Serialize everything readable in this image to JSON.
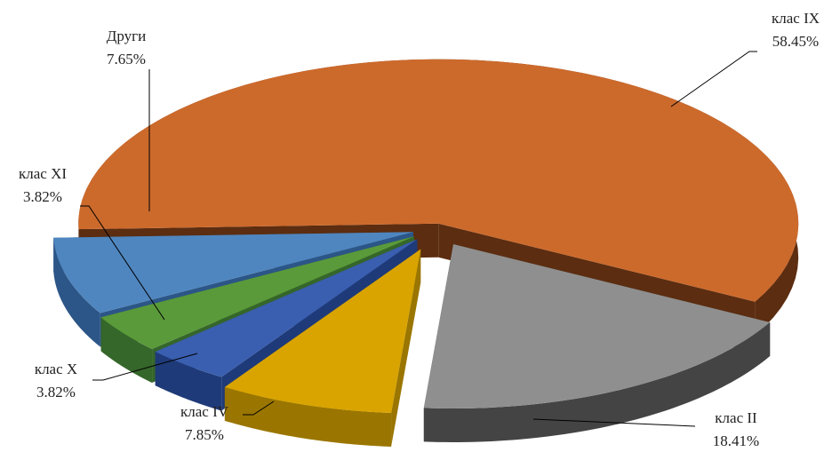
{
  "chart_data": {
    "type": "pie",
    "style": "3d-exploded",
    "title": "",
    "legend": "none",
    "slices": [
      {
        "label": "клас IX",
        "value": 58.45,
        "value_label": "58.45%",
        "color": "#cc6a2c",
        "side_color": "#5c2d10"
      },
      {
        "label": "клас II",
        "value": 18.41,
        "value_label": "18.41%",
        "color": "#8f8f8f",
        "side_color": "#444444"
      },
      {
        "label": "клас IV",
        "value": 7.85,
        "value_label": "7.85%",
        "color": "#d9a400",
        "side_color": "#9a7600"
      },
      {
        "label": "клас X",
        "value": 3.82,
        "value_label": "3.82%",
        "color": "#3a5fb0",
        "side_color": "#1f3a78"
      },
      {
        "label": "клас XI",
        "value": 3.82,
        "value_label": "3.82%",
        "color": "#5a9a3a",
        "side_color": "#35662a"
      },
      {
        "label": "Други",
        "value": 7.65,
        "value_label": "7.65%",
        "color": "#4f86bf",
        "side_color": "#2c5687"
      }
    ]
  }
}
